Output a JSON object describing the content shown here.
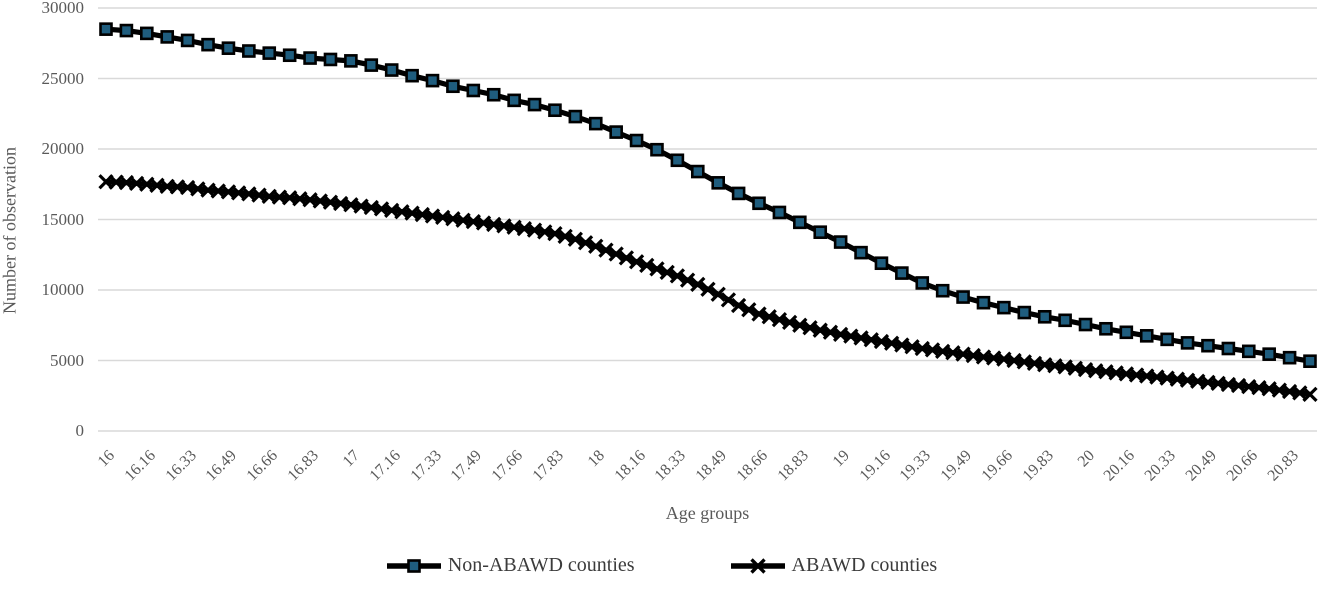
{
  "chart_data": {
    "type": "line",
    "title": "",
    "xlabel": "Age groups",
    "ylabel": "Number of observation",
    "ylim": [
      0,
      30000
    ],
    "ytick_step": 5000,
    "ytick_labels": [
      "0",
      "5000",
      "10000",
      "15000",
      "20000",
      "25000",
      "30000"
    ],
    "x_tick_labels": [
      "16",
      "16.16",
      "16.33",
      "16.49",
      "16.66",
      "16.83",
      "17",
      "17.16",
      "17.33",
      "17.49",
      "17.66",
      "17.83",
      "18",
      "18.16",
      "18.33",
      "18.49",
      "18.66",
      "18.83",
      "19",
      "19.16",
      "19.33",
      "19.49",
      "19.66",
      "19.83",
      "20",
      "20.16",
      "20.33",
      "20.49",
      "20.66",
      "20.83"
    ],
    "x_range": [
      16,
      20.9167
    ],
    "grid": "horizontal",
    "gridline_color": "#d9d9d9",
    "legend_position": "bottom",
    "series": [
      {
        "name": "Non-ABAWD counties",
        "marker": "square",
        "marker_fill": "#1f5d7e",
        "line_color": "#000000",
        "x_start": 16,
        "x_step": 0.0833333,
        "values": [
          28500,
          28400,
          28200,
          27950,
          27700,
          27400,
          27150,
          26950,
          26800,
          26650,
          26450,
          26350,
          26250,
          25950,
          25600,
          25200,
          24850,
          24450,
          24150,
          23850,
          23450,
          23150,
          22750,
          22300,
          21800,
          21200,
          20600,
          19950,
          19200,
          18400,
          17600,
          16850,
          16150,
          15500,
          14800,
          14100,
          13400,
          12650,
          11900,
          11200,
          10500,
          9950,
          9500,
          9100,
          8750,
          8400,
          8100,
          7850,
          7550,
          7250,
          7000,
          6750,
          6500,
          6250,
          6050,
          5850,
          5650,
          5450,
          5200,
          4950
        ]
      },
      {
        "name": "ABAWD counties",
        "marker": "x",
        "marker_fill": "#000000",
        "line_color": "#000000",
        "x_start": 16,
        "x_step": 0.0416667,
        "values": [
          17680,
          17650,
          17620,
          17560,
          17500,
          17425,
          17350,
          17310,
          17270,
          17175,
          17080,
          17020,
          16960,
          16890,
          16820,
          16730,
          16640,
          16590,
          16540,
          16470,
          16400,
          16310,
          16220,
          16135,
          16050,
          15950,
          15850,
          15750,
          15650,
          15550,
          15450,
          15350,
          15250,
          15150,
          15050,
          14950,
          14850,
          14750,
          14650,
          14550,
          14450,
          14350,
          14250,
          14125,
          14000,
          13800,
          13600,
          13350,
          13100,
          12825,
          12550,
          12275,
          12000,
          11750,
          11500,
          11250,
          11000,
          10700,
          10400,
          10050,
          9700,
          9300,
          8900,
          8600,
          8300,
          8100,
          7900,
          7700,
          7500,
          7325,
          7150,
          7000,
          6850,
          6725,
          6600,
          6475,
          6350,
          6225,
          6100,
          5975,
          5850,
          5750,
          5650,
          5550,
          5450,
          5350,
          5250,
          5175,
          5100,
          5000,
          4900,
          4800,
          4700,
          4625,
          4550,
          4450,
          4350,
          4275,
          4200,
          4125,
          4050,
          3975,
          3900,
          3825,
          3750,
          3675,
          3600,
          3525,
          3450,
          3375,
          3300,
          3225,
          3150,
          3075,
          3000,
          2900,
          2800,
          2700,
          2600
        ]
      }
    ]
  }
}
